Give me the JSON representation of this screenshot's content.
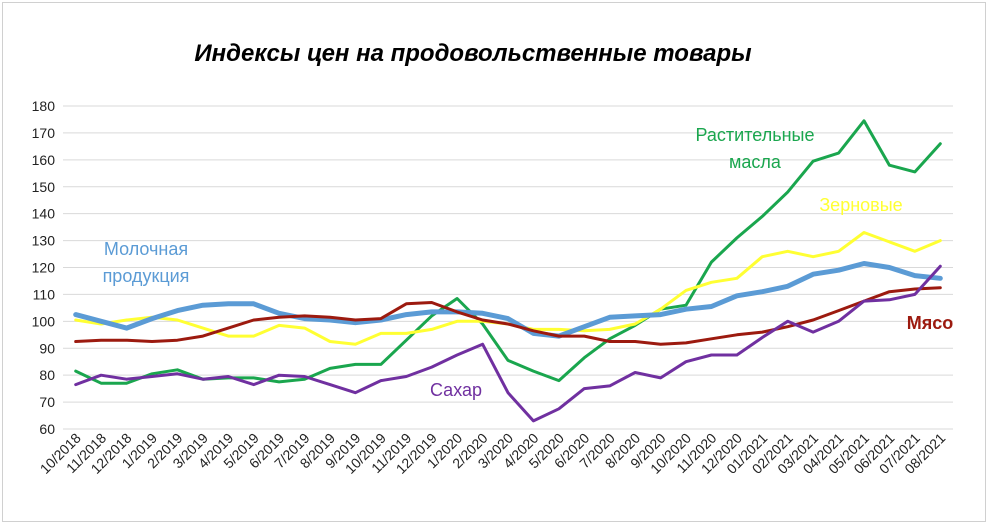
{
  "chart_data": {
    "type": "line",
    "title": "Индексы цен на продовольственные  товары",
    "xlabel": "",
    "ylabel": "",
    "ylim": [
      60,
      180
    ],
    "yticks": [
      60,
      70,
      80,
      90,
      100,
      110,
      120,
      130,
      140,
      150,
      160,
      170,
      180
    ],
    "grid": "horizontal",
    "categories": [
      "10/2018",
      "11/2018",
      "12/2018",
      "1/2019",
      "2/2019",
      "3/2019",
      "4/2019",
      "5/2019",
      "6/2019",
      "7/2019",
      "8/2019",
      "9/2019",
      "10/2019",
      "11/2019",
      "12/2019",
      "1/2020",
      "2/2020",
      "3/2020",
      "4/2020",
      "5/2020",
      "6/2020",
      "7/2020",
      "8/2020",
      "9/2020",
      "10/2020",
      "11/2020",
      "12/2020",
      "01/2021",
      "02/2021",
      "03/2021",
      "04/2021",
      "05/2021",
      "06/2021",
      "07/2021",
      "08/2021"
    ],
    "series": [
      {
        "name": "Растительные масла",
        "label_lines": [
          "Растительные",
          "масла"
        ],
        "color": "#1aa64e",
        "width": 3,
        "values": [
          81.5,
          77,
          77,
          80.5,
          82,
          78.5,
          79,
          79,
          77.5,
          78.5,
          82.5,
          84,
          84,
          93,
          102,
          108.5,
          99,
          85.5,
          81.5,
          78,
          86.5,
          93.5,
          98.5,
          104.5,
          106,
          122,
          131,
          139,
          148,
          159.5,
          162.5,
          174.5,
          158,
          155.5,
          166
        ]
      },
      {
        "name": "Зерновые",
        "label_lines": [
          "Зерновые"
        ],
        "color": "#ffff33",
        "width": 3,
        "values": [
          100.5,
          99,
          100.5,
          101.5,
          100.5,
          97.5,
          94.5,
          94.5,
          98.5,
          97.5,
          92.5,
          91.5,
          95.5,
          95.5,
          97,
          100,
          100,
          99,
          97,
          97,
          96.5,
          97,
          99,
          104.5,
          111.5,
          114.5,
          116,
          124,
          126,
          124,
          126,
          133,
          129.5,
          126,
          130
        ]
      },
      {
        "name": "Молочная продукция",
        "label_lines": [
          "Молочная",
          "продукция"
        ],
        "color": "#5b9bd5",
        "width": 5,
        "values": [
          102.5,
          100,
          97.5,
          101,
          104,
          106,
          106.5,
          106.5,
          103,
          101,
          100.5,
          99.5,
          100.5,
          102.5,
          103.5,
          103.5,
          103,
          101,
          95.5,
          94.5,
          98,
          101.5,
          102,
          102.5,
          104.5,
          105.5,
          109.5,
          111,
          113,
          117.5,
          119,
          121.5,
          120,
          117,
          116
        ]
      },
      {
        "name": "Мясо",
        "label_lines": [
          "Мясо"
        ],
        "color": "#9c1a0f",
        "width": 3,
        "values": [
          92.5,
          93,
          93,
          92.5,
          93,
          94.5,
          97.5,
          100.5,
          101.5,
          102,
          101.5,
          100.5,
          101,
          106.5,
          107,
          103.5,
          100.5,
          99,
          96.5,
          94.5,
          94.5,
          92.5,
          92.5,
          91.5,
          92,
          93.5,
          95,
          96,
          98,
          100.5,
          104,
          107.5,
          111,
          112,
          112.5
        ]
      },
      {
        "name": "Сахар",
        "label_lines": [
          "Сахар"
        ],
        "color": "#7030a0",
        "width": 3,
        "values": [
          76.5,
          80,
          78.5,
          79.5,
          80.5,
          78.5,
          79.5,
          76.5,
          80,
          79.5,
          76.5,
          73.5,
          78,
          79.5,
          83,
          87.5,
          91.5,
          73.5,
          63,
          67.5,
          75,
          76,
          81,
          79,
          85,
          87.5,
          87.5,
          94,
          100,
          96,
          100,
          107.5,
          108,
          110,
          120.5
        ]
      }
    ]
  }
}
